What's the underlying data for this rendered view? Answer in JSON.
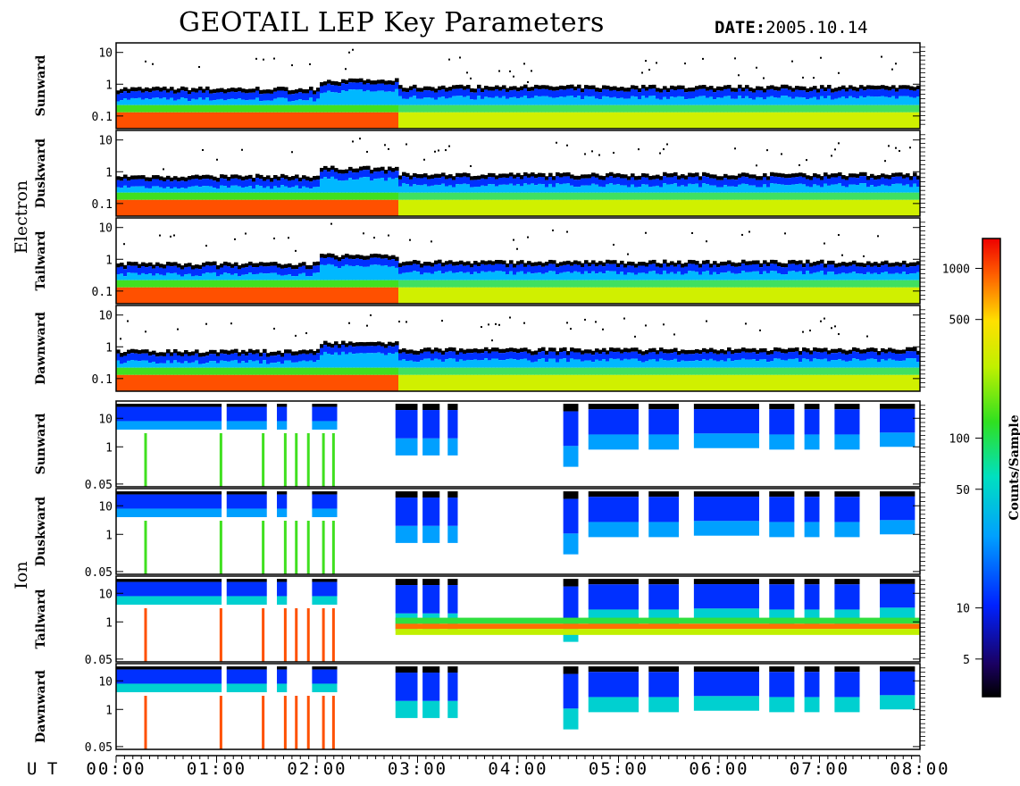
{
  "header": {
    "title": "GEOTAIL LEP Key Parameters",
    "date_label": "DATE:",
    "date_value": "2005.10.14"
  },
  "chart_data": {
    "type": "heatmap",
    "title": "GEOTAIL LEP Key Parameters",
    "x_axis": {
      "label": "U T",
      "ticks": [
        "00:00",
        "01:00",
        "02:00",
        "03:00",
        "04:00",
        "05:00",
        "06:00",
        "07:00",
        "08:00"
      ],
      "range_hours": [
        0,
        8
      ]
    },
    "groups": [
      {
        "name": "Electron",
        "y_ticks": [
          "10",
          "1",
          "0.1"
        ],
        "y_range": [
          0.04,
          20
        ],
        "log_scale": true,
        "panels": [
          "Sunward",
          "Duskward",
          "Tailward",
          "Dawnward"
        ]
      },
      {
        "name": "Ion",
        "y_ticks": [
          "10",
          "1",
          "0.05"
        ],
        "y_range": [
          0.04,
          40
        ],
        "log_scale": true,
        "panels": [
          "Sunward",
          "Duskward",
          "Tailward",
          "Dawnward"
        ]
      }
    ],
    "colorbar": {
      "label": "Counts/Sample",
      "ticks": [
        "1000",
        "500",
        "100",
        "50",
        "10",
        "5"
      ],
      "tick_values": [
        1000,
        500,
        100,
        50,
        10,
        5
      ],
      "range": [
        3,
        1500
      ],
      "log_scale": true
    }
  }
}
